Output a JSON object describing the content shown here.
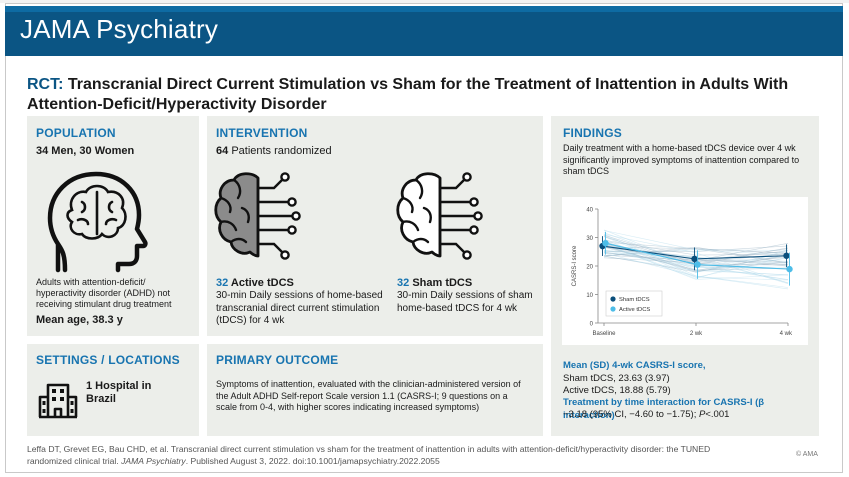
{
  "header": {
    "journal": "JAMA Psychiatry",
    "title_tag": "RCT:",
    "title": "Transcranial Direct Current Stimulation vs Sham for the Treatment of Inattention in Adults With Attention-Deficit/Hyperactivity Disorder"
  },
  "population": {
    "heading": "POPULATION",
    "counts": "34 Men, 30 Women",
    "description": "Adults with attention-deficit/ hyperactivity disorder (ADHD) not receiving stimulant drug treatment",
    "mean_age": "Mean age, 38.3 y"
  },
  "intervention": {
    "heading": "INTERVENTION",
    "randomized_count": "64",
    "randomized_label": "Patients randomized",
    "arms": [
      {
        "count": "32",
        "name": "Active tDCS",
        "description": "30-min Daily sessions of home-based transcranial direct current stimulation (tDCS) for 4 wk"
      },
      {
        "count": "32",
        "name": "Sham tDCS",
        "description": "30-min Daily sessions of sham home-based tDCS for 4 wk"
      }
    ]
  },
  "findings": {
    "heading": "FINDINGS",
    "summary": "Daily treatment with a home-based tDCS device over 4 wk significantly improved symptoms of inattention compared to sham tDCS",
    "result_heading": "Mean (SD) 4-wk CASRS-I score,",
    "result_sham": "Sham tDCS, 23.63 (3.97)",
    "result_active": "Active tDCS, 18.88 (5.79)",
    "interaction_heading": "Treatment by time interaction for CASRS-I (β interaction)",
    "interaction_value_pre": "−3.18 (95% CI, −4.60 to −1.75); ",
    "interaction_p": "P",
    "interaction_value_post": "<.001"
  },
  "settings": {
    "heading": "SETTINGS / LOCATIONS",
    "text": "1 Hospital in Brazil"
  },
  "primary_outcome": {
    "heading": "PRIMARY OUTCOME",
    "text": "Symptoms of inattention, evaluated with the clinician-administered version of the Adult ADHD Self-report Scale version 1.1 (CASRS-I; 9 questions on a scale from 0-4, with higher scores indicating increased symptoms)"
  },
  "citation": {
    "text": "Leffa DT, Grevet EG, Bau CHD, et al. Transcranial direct current stimulation vs sham for the treatment of inattention in adults with attention-deficit/hyperactivity disorder: the TUNED randomized clinical trial. ",
    "journal": "JAMA Psychiatry",
    "tail": ". Published August 3, 2022. doi:10.1001/jamapsychiatry.2022.2055",
    "copyright": "© AMA"
  },
  "colors": {
    "banner": "#0b5584",
    "accent": "#1874b0",
    "sham": "#0b4f7c",
    "active": "#4dbde8",
    "panel": "#eceeea"
  },
  "icons": [
    "head-brain-icon",
    "brain-circuit-filled-icon",
    "brain-circuit-outline-icon",
    "hospital-building-icon"
  ],
  "chart_data": {
    "type": "line",
    "title": "",
    "xlabel": "",
    "ylabel": "CASRS-I score",
    "categories": [
      "Baseline",
      "2 wk",
      "4 wk"
    ],
    "ylim": [
      0,
      40
    ],
    "yticks": [
      0,
      10,
      20,
      30,
      40
    ],
    "grid": false,
    "legend_position": "bottom-left",
    "series": [
      {
        "name": "Sham tDCS",
        "values": [
          27,
          22.5,
          23.6
        ],
        "errors": [
          3.5,
          4.0,
          4.0
        ],
        "color": "#0b4f7c"
      },
      {
        "name": "Active tDCS",
        "values": [
          28,
          20.5,
          18.9
        ],
        "errors": [
          4.0,
          5.0,
          5.8
        ],
        "color": "#4dbde8"
      }
    ]
  }
}
